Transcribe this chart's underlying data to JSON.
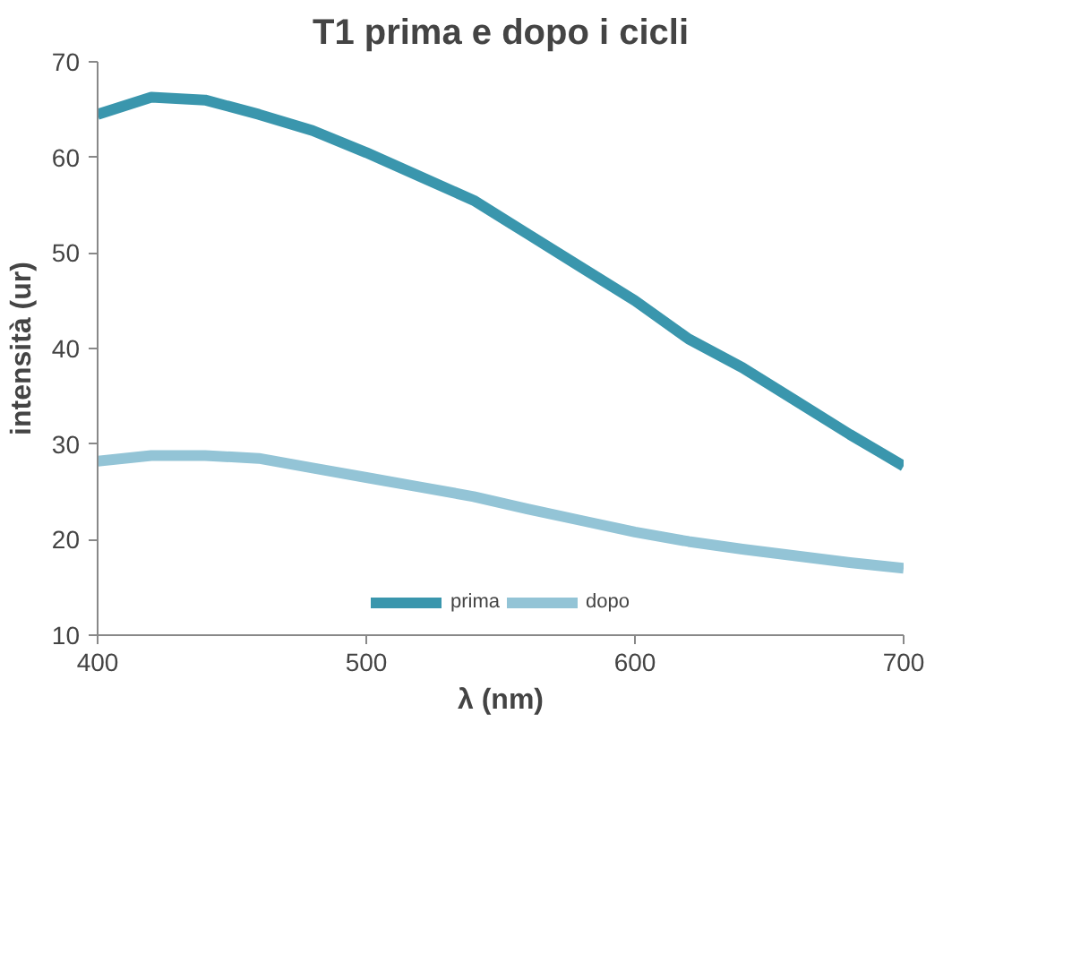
{
  "chart_data": {
    "type": "line",
    "title": "T1 prima e dopo i cicli",
    "xlabel": "λ (nm)",
    "ylabel": "intensità (ur)",
    "x": [
      400,
      420,
      440,
      460,
      480,
      500,
      520,
      540,
      560,
      580,
      600,
      620,
      640,
      660,
      680,
      700
    ],
    "series": [
      {
        "name": "prima",
        "color": "#3a96ad",
        "values": [
          64.5,
          66.3,
          66,
          64.5,
          62.8,
          60.5,
          58,
          55.5,
          52,
          48.5,
          45,
          41,
          38,
          34.5,
          31,
          27.7
        ]
      },
      {
        "name": "dopo",
        "color": "#93c4d6",
        "values": [
          28.2,
          28.8,
          28.8,
          28.5,
          27.5,
          26.5,
          25.5,
          24.5,
          23.2,
          22,
          20.8,
          19.8,
          19,
          18.3,
          17.6,
          17
        ]
      }
    ],
    "xlim": [
      400,
      700
    ],
    "ylim": [
      10,
      70
    ],
    "xticks": [
      400,
      500,
      600,
      700
    ],
    "yticks": [
      10,
      20,
      30,
      40,
      50,
      60,
      70
    ],
    "grid": false,
    "legend": "bottom",
    "marker": "none",
    "line_style": "solid"
  }
}
